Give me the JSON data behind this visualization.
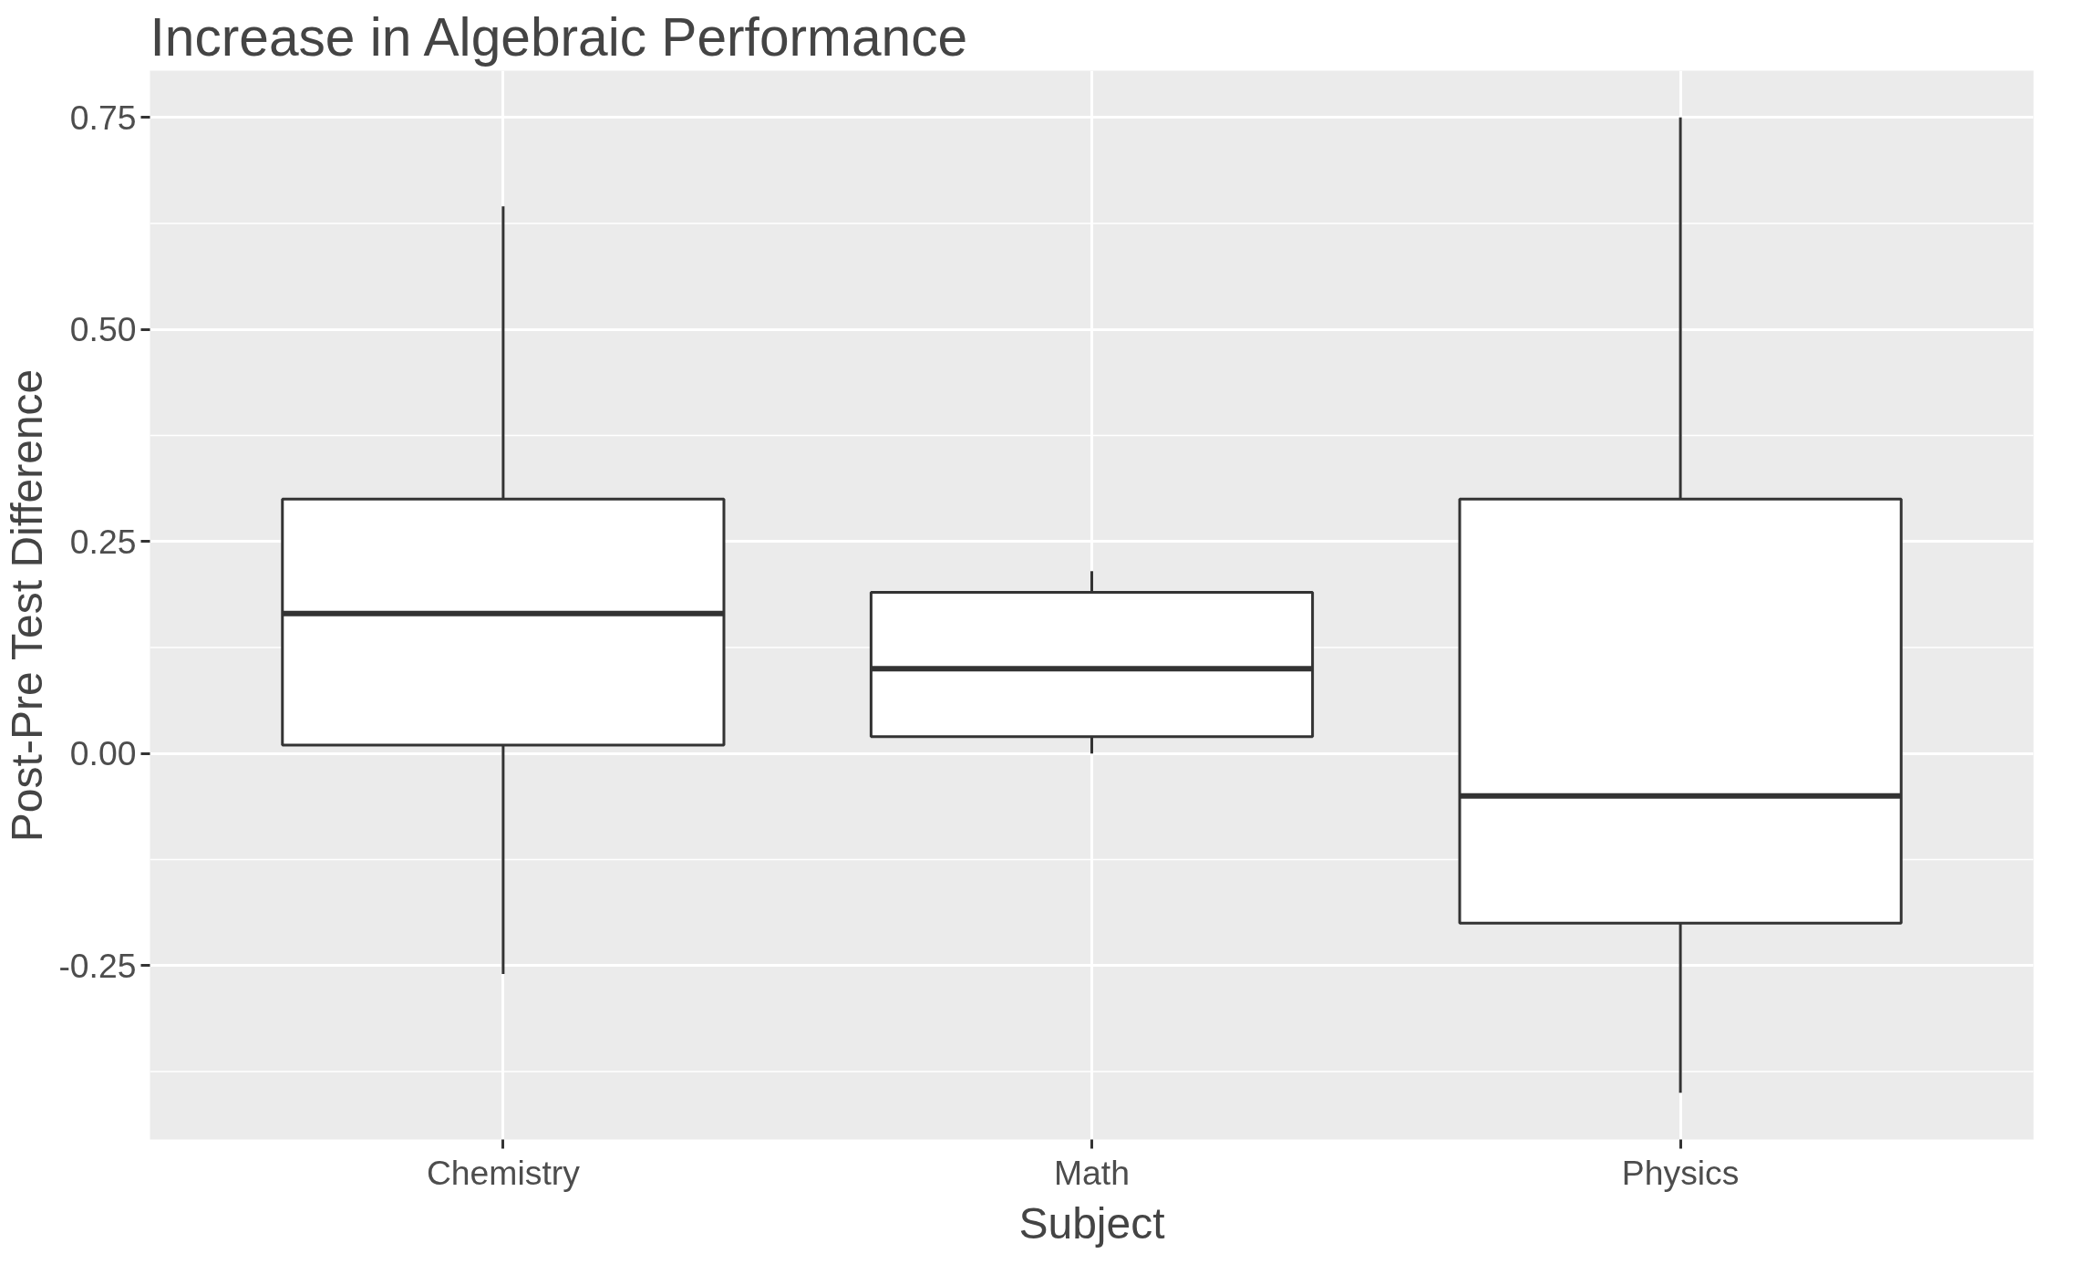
{
  "chart_data": {
    "type": "box",
    "title": "Increase in Algebraic Performance",
    "xlabel": "Subject",
    "ylabel": "Post-Pre Test Difference",
    "categories": [
      "Chemistry",
      "Math",
      "Physics"
    ],
    "boxes": [
      {
        "low": -0.26,
        "q1": 0.01,
        "median": 0.165,
        "q3": 0.3,
        "high": 0.645
      },
      {
        "low": 0.0,
        "q1": 0.02,
        "median": 0.1,
        "q3": 0.19,
        "high": 0.215
      },
      {
        "low": -0.4,
        "q1": -0.2,
        "median": -0.05,
        "q3": 0.3,
        "high": 0.75
      }
    ],
    "ylim": [
      -0.455,
      0.805
    ],
    "yticks": [
      {
        "value": -0.25,
        "label": "-0.25"
      },
      {
        "value": 0,
        "label": "0.00"
      },
      {
        "value": 0.25,
        "label": "0.25"
      },
      {
        "value": 0.5,
        "label": "0.50"
      },
      {
        "value": 0.75,
        "label": "0.75"
      }
    ],
    "grid": true
  }
}
